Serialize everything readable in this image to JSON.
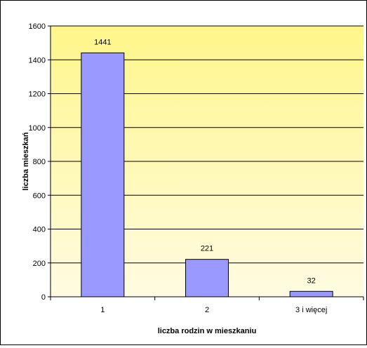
{
  "chart_data": {
    "type": "bar",
    "title": "",
    "categories": [
      "1",
      "2",
      "3 i więcej"
    ],
    "values": [
      1441,
      221,
      32
    ],
    "data_labels": [
      "1441",
      "221",
      "32"
    ],
    "xlabel": "liczba rodzin w mieszkaniu",
    "ylabel": "liczba mieszkań",
    "ylim": [
      0,
      1600
    ],
    "yticks": [
      0,
      200,
      400,
      600,
      800,
      1000,
      1200,
      1400,
      1600
    ],
    "grid": true,
    "legend": "none",
    "colors": {
      "bar_fill": "#9999ff",
      "bar_stroke": "#000000",
      "plot_bg_top": "#fff68a",
      "plot_bg_bottom": "#fffbe2",
      "gridline": "#000000"
    }
  }
}
